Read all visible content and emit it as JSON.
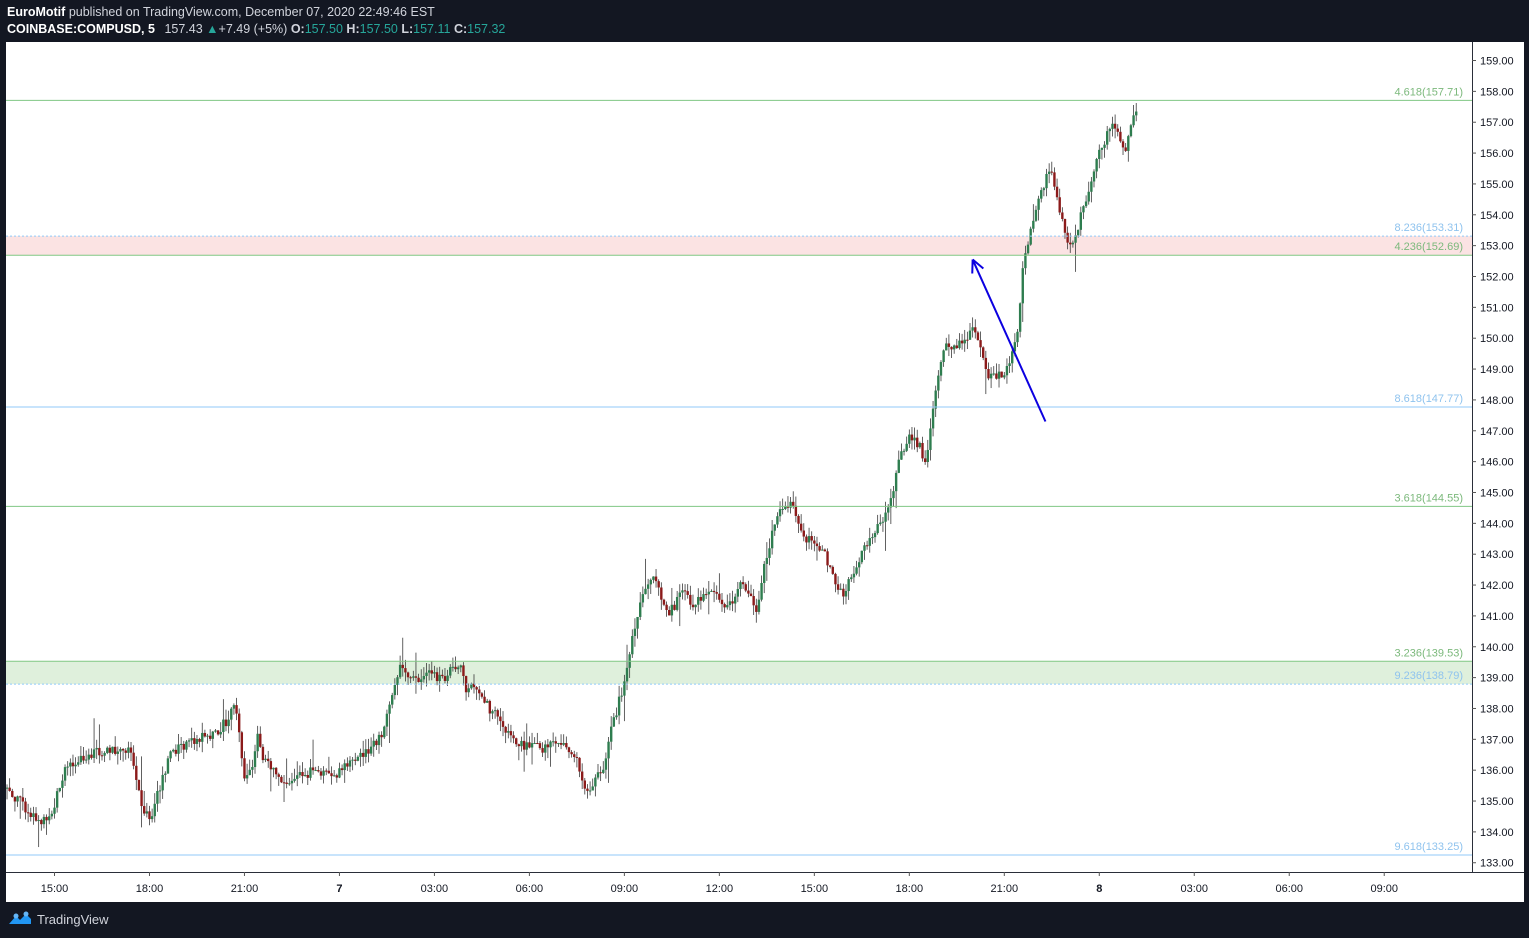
{
  "header": {
    "author": "EuroMotif",
    "published_text": "published on TradingView.com, December 07, 2020 22:49:46 EST",
    "symbol": "COINBASE:COMPUSD",
    "interval": "5",
    "last": "157.43",
    "change_arrow": "▲",
    "change": "+7.49 (+5%)",
    "o_label": "O:",
    "o_value": "157.50",
    "h_label": "H:",
    "h_value": "157.50",
    "l_label": "L:",
    "l_value": "157.11",
    "c_label": "C:",
    "c_value": "157.32"
  },
  "footer": {
    "brand": "TradingView",
    "logo_icon": "tradingview-logo-icon"
  },
  "colors": {
    "up": "#26a69a",
    "up_body": "#2e7d4f",
    "down": "#8b1a1a",
    "arrow": "#0c00e0",
    "green_level": "#81c784",
    "blue_level": "#90caf9",
    "header_up": "#26a69a"
  },
  "chart_data": {
    "type": "candlestick",
    "symbol": "COINBASE:COMPUSD",
    "interval": "5",
    "ylim": [
      132.7,
      159.6
    ],
    "y_ticks": [
      "133.00",
      "134.00",
      "135.00",
      "136.00",
      "137.00",
      "138.00",
      "139.00",
      "140.00",
      "141.00",
      "142.00",
      "143.00",
      "144.00",
      "145.00",
      "146.00",
      "147.00",
      "148.00",
      "149.00",
      "150.00",
      "151.00",
      "152.00",
      "153.00",
      "154.00",
      "155.00",
      "156.00",
      "157.00",
      "158.00",
      "159.00"
    ],
    "x_ticks": [
      "15:00",
      "18:00",
      "21:00",
      "7",
      "03:00",
      "06:00",
      "09:00",
      "12:00",
      "15:00",
      "18:00",
      "21:00",
      "8",
      "03:00",
      "06:00",
      "09:00"
    ],
    "x_tick_hours": [
      0,
      3,
      6,
      9,
      12,
      15,
      18,
      21,
      24,
      27,
      30,
      33,
      36,
      39,
      42
    ],
    "x_start_hours": -1.5,
    "x_end_hours": 43.5,
    "levels": [
      {
        "label": "4.618(157.71)",
        "price": 157.71,
        "color": "green"
      },
      {
        "label": "8.236(153.31)",
        "price": 153.31,
        "color": "blue"
      },
      {
        "label": "4.236(152.69)",
        "price": 152.69,
        "color": "green"
      },
      {
        "label": "8.618(147.77)",
        "price": 147.77,
        "color": "blue"
      },
      {
        "label": "3.618(144.55)",
        "price": 144.55,
        "color": "green"
      },
      {
        "label": "3.236(139.53)",
        "price": 139.53,
        "color": "green"
      },
      {
        "label": "9.236(138.79)",
        "price": 138.79,
        "color": "blue"
      },
      {
        "label": "9.618(133.25)",
        "price": 133.25,
        "color": "blue"
      }
    ],
    "zones": [
      {
        "from": 152.69,
        "to": 153.31,
        "color": "red"
      },
      {
        "from": 138.79,
        "to": 139.53,
        "color": "green"
      }
    ],
    "arrow": {
      "from": {
        "h": 31.3,
        "price": 147.3
      },
      "to": {
        "h": 29.0,
        "price": 152.55
      }
    },
    "price_path": [
      [
        -1.5,
        135.4
      ],
      [
        -1.0,
        134.9
      ],
      [
        -0.6,
        134.4
      ],
      [
        -0.2,
        134.3
      ],
      [
        0.3,
        135.9
      ],
      [
        0.8,
        136.4
      ],
      [
        1.3,
        136.6
      ],
      [
        1.8,
        136.7
      ],
      [
        2.4,
        136.6
      ],
      [
        2.6,
        135.6
      ],
      [
        2.8,
        134.8
      ],
      [
        3.0,
        134.4
      ],
      [
        3.2,
        135.0
      ],
      [
        3.6,
        136.4
      ],
      [
        4.2,
        136.9
      ],
      [
        5.0,
        137.2
      ],
      [
        5.5,
        137.6
      ],
      [
        5.7,
        138.3
      ],
      [
        5.9,
        136.6
      ],
      [
        6.0,
        135.7
      ],
      [
        6.2,
        136.0
      ],
      [
        6.4,
        137.1
      ],
      [
        6.6,
        136.3
      ],
      [
        7.0,
        135.9
      ],
      [
        7.3,
        135.5
      ],
      [
        7.6,
        135.8
      ],
      [
        8.3,
        136.0
      ],
      [
        8.8,
        135.8
      ],
      [
        9.2,
        136.2
      ],
      [
        9.8,
        136.5
      ],
      [
        10.3,
        137.1
      ],
      [
        10.7,
        138.4
      ],
      [
        10.9,
        139.3
      ],
      [
        11.3,
        139.0
      ],
      [
        12.0,
        139.1
      ],
      [
        12.3,
        138.9
      ],
      [
        12.6,
        139.3
      ],
      [
        12.9,
        139.2
      ],
      [
        13.0,
        138.5
      ],
      [
        13.3,
        138.8
      ],
      [
        13.6,
        138.2
      ],
      [
        13.9,
        137.8
      ],
      [
        14.2,
        137.3
      ],
      [
        14.6,
        136.8
      ],
      [
        15.3,
        136.7
      ],
      [
        15.7,
        136.8
      ],
      [
        15.9,
        137.0
      ],
      [
        16.2,
        136.7
      ],
      [
        16.5,
        136.4
      ],
      [
        16.8,
        135.3
      ],
      [
        17.0,
        135.5
      ],
      [
        17.3,
        136.0
      ],
      [
        17.6,
        137.4
      ],
      [
        18.0,
        138.8
      ],
      [
        18.3,
        140.5
      ],
      [
        18.6,
        141.9
      ],
      [
        18.9,
        142.3
      ],
      [
        19.1,
        141.8
      ],
      [
        19.3,
        141.1
      ],
      [
        19.6,
        141.3
      ],
      [
        19.8,
        141.8
      ],
      [
        20.1,
        141.4
      ],
      [
        20.5,
        141.6
      ],
      [
        20.8,
        141.7
      ],
      [
        21.1,
        141.4
      ],
      [
        21.4,
        141.5
      ],
      [
        21.7,
        142.1
      ],
      [
        22.0,
        141.5
      ],
      [
        22.2,
        141.0
      ],
      [
        22.4,
        142.5
      ],
      [
        22.7,
        143.8
      ],
      [
        23.0,
        144.6
      ],
      [
        23.3,
        144.6
      ],
      [
        23.6,
        143.6
      ],
      [
        23.9,
        143.4
      ],
      [
        24.2,
        143.2
      ],
      [
        24.5,
        142.6
      ],
      [
        24.7,
        142.0
      ],
      [
        24.9,
        141.7
      ],
      [
        25.2,
        142.3
      ],
      [
        25.5,
        143.0
      ],
      [
        25.8,
        143.6
      ],
      [
        26.1,
        144.0
      ],
      [
        26.4,
        144.6
      ],
      [
        26.7,
        146.3
      ],
      [
        27.0,
        146.8
      ],
      [
        27.3,
        146.6
      ],
      [
        27.5,
        145.9
      ],
      [
        27.8,
        148.1
      ],
      [
        28.1,
        149.7
      ],
      [
        28.5,
        149.8
      ],
      [
        28.8,
        149.9
      ],
      [
        29.0,
        150.3
      ],
      [
        29.3,
        149.5
      ],
      [
        29.5,
        148.8
      ],
      [
        29.8,
        148.7
      ],
      [
        30.1,
        149.1
      ],
      [
        30.4,
        150.0
      ],
      [
        30.6,
        152.5
      ],
      [
        30.9,
        153.8
      ],
      [
        31.2,
        154.9
      ],
      [
        31.4,
        155.4
      ],
      [
        31.6,
        155.0
      ],
      [
        31.8,
        153.9
      ],
      [
        32.0,
        153.2
      ],
      [
        32.2,
        153.1
      ],
      [
        32.5,
        154.3
      ],
      [
        32.8,
        155.4
      ],
      [
        33.1,
        156.2
      ],
      [
        33.4,
        157.0
      ],
      [
        33.6,
        156.7
      ],
      [
        33.8,
        156.1
      ],
      [
        34.0,
        156.8
      ],
      [
        34.2,
        157.4
      ]
    ]
  }
}
